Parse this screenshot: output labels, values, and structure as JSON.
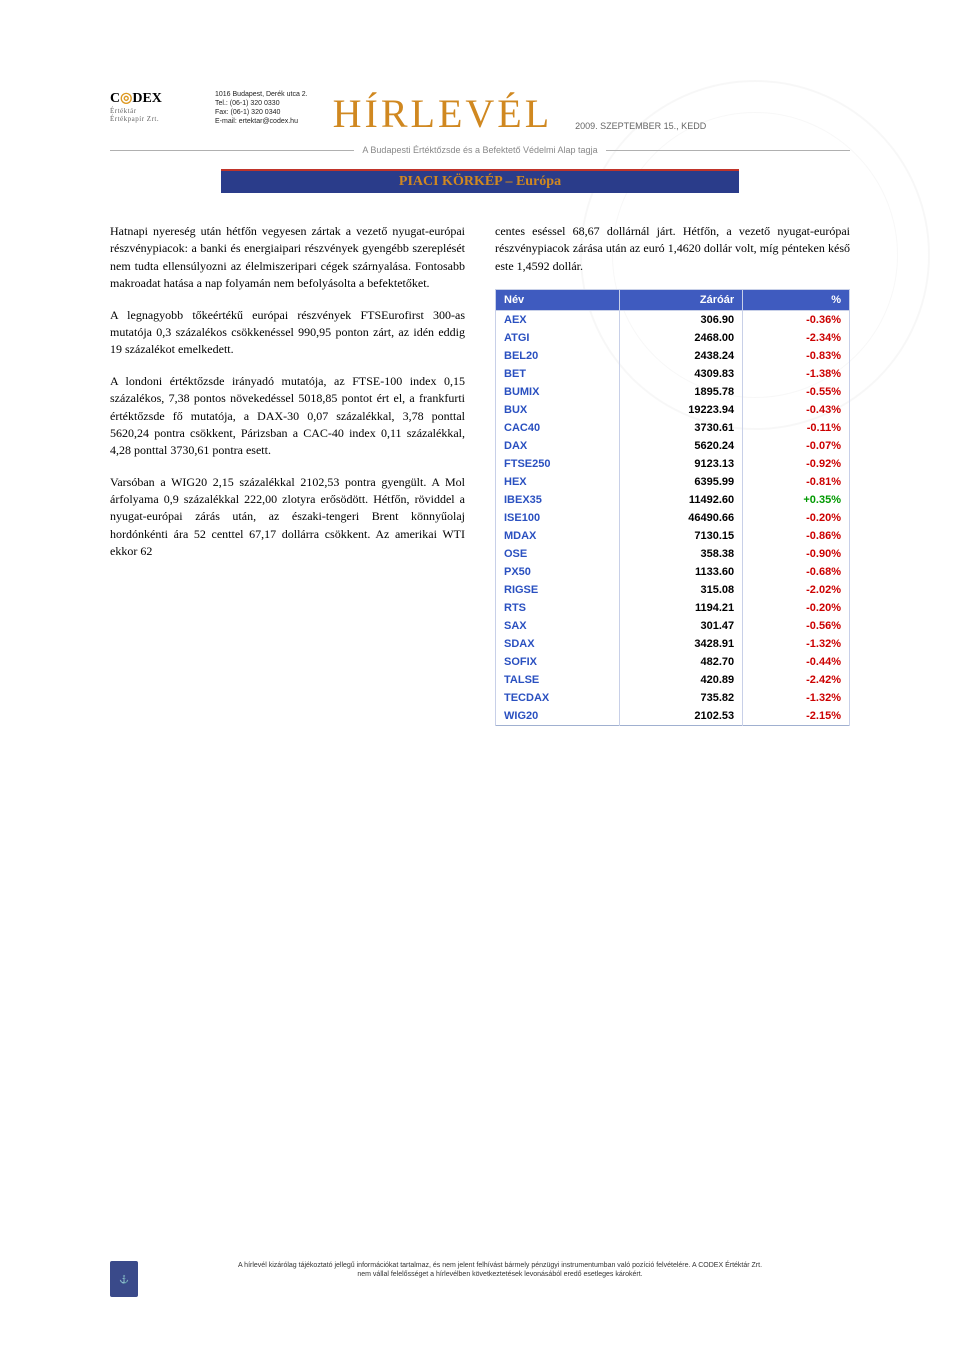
{
  "header": {
    "logo_main": "C◎DEX",
    "logo_sub1": "Értéktár",
    "logo_sub2": "Értékpapír Zrt.",
    "contact_line1": "1016 Budapest, Derék utca 2.",
    "contact_line2": "Tel.: (06-1) 320 0330",
    "contact_line3": "Fax: (06-1) 320 0340",
    "contact_line4": "E-mail: ertektar@codex.hu",
    "masthead": "HÍRLEVÉL",
    "date": "2009. SZEPTEMBER 15., KEDD",
    "subhead": "A Budapesti Értéktőzsde és a Befektető Védelmi Alap tagja"
  },
  "section_title": "PIACI KÖRKÉP – Európa",
  "body": {
    "p1": "Hatnapi nyereség után hétfőn vegyesen zártak a vezető nyugat-európai részvénypiacok: a banki és energiaipari részvények gyengébb szereplését nem tudta ellensúlyozni az élelmiszeripari cégek szárnyalása. Fontosabb makroadat hatása a nap folyamán nem befolyásolta a befektetőket.",
    "p2": "A legnagyobb tőkeértékű európai részvények FTSEurofirst 300-as mutatója 0,3 százalékos csökkenéssel 990,95 ponton zárt, az idén eddig 19 százalékot emelkedett.",
    "p3": "A londoni értéktőzsde irányadó mutatója, az FTSE-100 index 0,15 százalékos, 7,38 pontos növekedéssel 5018,85 pontot ért el, a frankfurti értéktőzsde fő mutatója, a DAX-30 0,07 százalékkal, 3,78 ponttal 5620,24 pontra csökkent, Párizsban a CAC-40 index 0,11 százalékkal, 4,28 ponttal 3730,61 pontra esett.",
    "p4": "Varsóban a WIG20 2,15 százalékkal 2102,53 pontra gyengült. A Mol árfolyama 0,9 százalékkal 222,00 zlotyra erősödött. Hétfőn, röviddel a nyugat-európai zárás után, az északi-tengeri Brent könnyűolaj hordónkénti ára 52 centtel 67,17 dollárra csökkent. Az amerikai WTI ekkor 62",
    "p5": "centes eséssel 68,67 dollárnál járt. Hétfőn, a vezető nyugat-európai részvénypiacok zárása után az euró 1,4620 dollár volt, míg pénteken késő este 1,4592 dollár."
  },
  "table": {
    "headers": [
      "Név",
      "Záróár",
      "%"
    ],
    "pos_color": "#009900",
    "neg_color": "#cc0000",
    "rows": [
      {
        "name": "AEX",
        "close": "306.90",
        "pct": "-0.36%",
        "dir": -1
      },
      {
        "name": "ATGI",
        "close": "2468.00",
        "pct": "-2.34%",
        "dir": -1
      },
      {
        "name": "BEL20",
        "close": "2438.24",
        "pct": "-0.83%",
        "dir": -1
      },
      {
        "name": "BET",
        "close": "4309.83",
        "pct": "-1.38%",
        "dir": -1
      },
      {
        "name": "BUMIX",
        "close": "1895.78",
        "pct": "-0.55%",
        "dir": -1
      },
      {
        "name": "BUX",
        "close": "19223.94",
        "pct": "-0.43%",
        "dir": -1
      },
      {
        "name": "CAC40",
        "close": "3730.61",
        "pct": "-0.11%",
        "dir": -1
      },
      {
        "name": "DAX",
        "close": "5620.24",
        "pct": "-0.07%",
        "dir": -1
      },
      {
        "name": "FTSE250",
        "close": "9123.13",
        "pct": "-0.92%",
        "dir": -1
      },
      {
        "name": "HEX",
        "close": "6395.99",
        "pct": "-0.81%",
        "dir": -1
      },
      {
        "name": "IBEX35",
        "close": "11492.60",
        "pct": "+0.35%",
        "dir": 1
      },
      {
        "name": "ISE100",
        "close": "46490.66",
        "pct": "-0.20%",
        "dir": -1
      },
      {
        "name": "MDAX",
        "close": "7130.15",
        "pct": "-0.86%",
        "dir": -1
      },
      {
        "name": "OSE",
        "close": "358.38",
        "pct": "-0.90%",
        "dir": -1
      },
      {
        "name": "PX50",
        "close": "1133.60",
        "pct": "-0.68%",
        "dir": -1
      },
      {
        "name": "RIGSE",
        "close": "315.08",
        "pct": "-2.02%",
        "dir": -1
      },
      {
        "name": "RTS",
        "close": "1194.21",
        "pct": "-0.20%",
        "dir": -1
      },
      {
        "name": "SAX",
        "close": "301.47",
        "pct": "-0.56%",
        "dir": -1
      },
      {
        "name": "SDAX",
        "close": "3428.91",
        "pct": "-1.32%",
        "dir": -1
      },
      {
        "name": "SOFIX",
        "close": "482.70",
        "pct": "-0.44%",
        "dir": -1
      },
      {
        "name": "TALSE",
        "close": "420.89",
        "pct": "-2.42%",
        "dir": -1
      },
      {
        "name": "TECDAX",
        "close": "735.82",
        "pct": "-1.32%",
        "dir": -1
      },
      {
        "name": "WIG20",
        "close": "2102.53",
        "pct": "-2.15%",
        "dir": -1
      }
    ]
  },
  "footer": {
    "line1": "A hírlevél kizárólag tájékoztató jellegű információkat tartalmaz, és nem jelent felhívást bármely pénzügyi instrumentumban való pozíció felvételére. A CODEX Értéktár Zrt.",
    "line2": "nem vállal felelősséget a hírlevélben következtetések levonásából eredő esetleges károkért."
  }
}
